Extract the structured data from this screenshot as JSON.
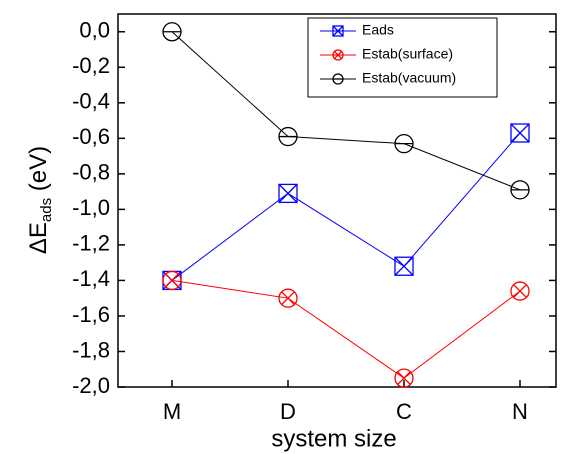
{
  "chart_data": {
    "type": "line",
    "x_label": "system size",
    "y_label": {
      "main": "ΔE",
      "sub": "ads",
      "unit": "(eV)"
    },
    "categories": [
      "M",
      "D",
      "C",
      "N"
    ],
    "series": [
      {
        "name": "Eads",
        "color": "#0000ff",
        "marker": "square-x",
        "values": [
          -1.4,
          -0.91,
          -1.32,
          -0.57
        ]
      },
      {
        "name": "Estab(surface)",
        "color": "#ff0000",
        "marker": "circle-x",
        "values": [
          -1.4,
          -1.5,
          -1.95,
          -1.46
        ]
      },
      {
        "name": "Estab(vacuum)",
        "color": "#000000",
        "marker": "circle-line",
        "values": [
          0.0,
          -0.59,
          -0.63,
          -0.89
        ]
      }
    ],
    "ylim": [
      -2.0,
      0.1
    ],
    "yticks": [
      {
        "value": 0.0,
        "label": "0,0"
      },
      {
        "value": -0.2,
        "label": "-0,2"
      },
      {
        "value": -0.4,
        "label": "-0,4"
      },
      {
        "value": -0.6,
        "label": "-0,6"
      },
      {
        "value": -0.8,
        "label": "-0,8"
      },
      {
        "value": -1.0,
        "label": "-1,0"
      },
      {
        "value": -1.2,
        "label": "-1,2"
      },
      {
        "value": -1.4,
        "label": "-1,4"
      },
      {
        "value": -1.6,
        "label": "-1,6"
      },
      {
        "value": -1.8,
        "label": "-1,8"
      },
      {
        "value": -2.0,
        "label": "-2,0"
      }
    ],
    "legend": "top-right"
  }
}
